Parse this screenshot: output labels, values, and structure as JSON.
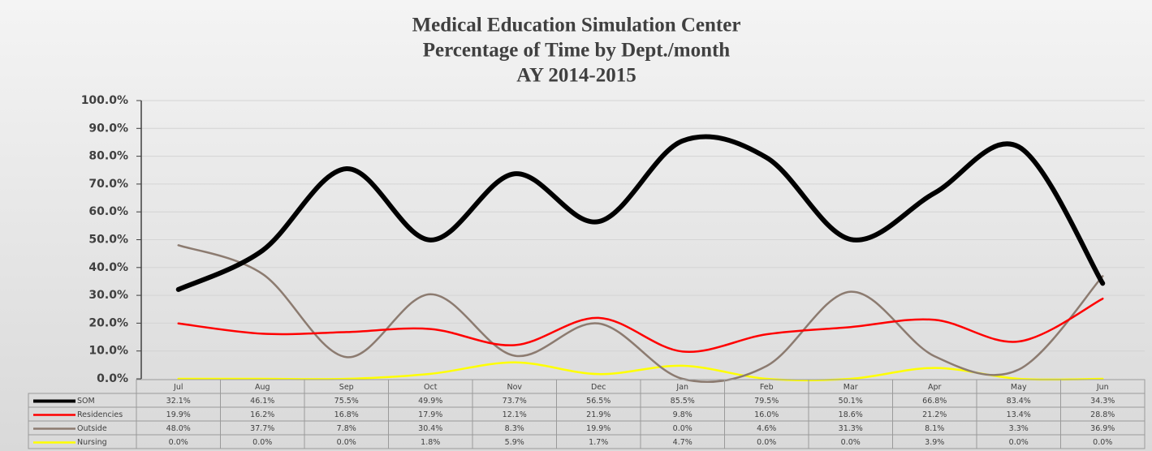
{
  "chart_data": {
    "type": "line",
    "title": [
      "Medical Education Simulation Center",
      "Percentage of Time by Dept./month",
      "AY 2014-2015"
    ],
    "categories": [
      "Jul",
      "Aug",
      "Sep",
      "Oct",
      "Nov",
      "Dec",
      "Jan",
      "Feb",
      "Mar",
      "Apr",
      "May",
      "Jun"
    ],
    "series": [
      {
        "name": "SOM",
        "color": "#000000",
        "values": [
          32.1,
          46.1,
          75.5,
          49.9,
          73.7,
          56.5,
          85.5,
          79.5,
          50.1,
          66.8,
          83.4,
          34.3
        ],
        "value_labels": [
          "32.1%",
          "46.1%",
          "75.5%",
          "49.9%",
          "73.7%",
          "56.5%",
          "85.5%",
          "79.5%",
          "50.1%",
          "66.8%",
          "83.4%",
          "34.3%"
        ]
      },
      {
        "name": "Residencies",
        "color": "#ff0000",
        "values": [
          19.9,
          16.2,
          16.8,
          17.9,
          12.1,
          21.9,
          9.8,
          16.0,
          18.6,
          21.2,
          13.4,
          28.8
        ],
        "value_labels": [
          "19.9%",
          "16.2%",
          "16.8%",
          "17.9%",
          "12.1%",
          "21.9%",
          "9.8%",
          "16.0%",
          "18.6%",
          "21.2%",
          "13.4%",
          "28.8%"
        ]
      },
      {
        "name": "Outside",
        "color": "#8c7b70",
        "values": [
          48.0,
          37.7,
          7.8,
          30.4,
          8.3,
          19.9,
          0.0,
          4.6,
          31.3,
          8.1,
          3.3,
          36.9
        ],
        "value_labels": [
          "48.0%",
          "37.7%",
          "7.8%",
          "30.4%",
          "8.3%",
          "19.9%",
          "0.0%",
          "4.6%",
          "31.3%",
          "8.1%",
          "3.3%",
          "36.9%"
        ]
      },
      {
        "name": "Nursing",
        "color": "#ffff00",
        "values": [
          0.0,
          0.0,
          0.0,
          1.8,
          5.9,
          1.7,
          4.7,
          0.0,
          0.0,
          3.9,
          0.0,
          0.0
        ],
        "value_labels": [
          "0.0%",
          "0.0%",
          "0.0%",
          "1.8%",
          "5.9%",
          "1.7%",
          "4.7%",
          "0.0%",
          "0.0%",
          "3.9%",
          "0.0%",
          "0.0%"
        ]
      }
    ],
    "ylim": [
      0,
      100
    ],
    "yticks": [
      {
        "value": 0,
        "label": "0.0%"
      },
      {
        "value": 10,
        "label": "10.0%"
      },
      {
        "value": 20,
        "label": "20.0%"
      },
      {
        "value": 30,
        "label": "30.0%"
      },
      {
        "value": 40,
        "label": "40.0%"
      },
      {
        "value": 50,
        "label": "50.0%"
      },
      {
        "value": 60,
        "label": "60.0%"
      },
      {
        "value": 70,
        "label": "70.0%"
      },
      {
        "value": 80,
        "label": "80.0%"
      },
      {
        "value": 90,
        "label": "90.0%"
      },
      {
        "value": 100,
        "label": "100.0%"
      }
    ],
    "grid": true,
    "smooth": true
  }
}
